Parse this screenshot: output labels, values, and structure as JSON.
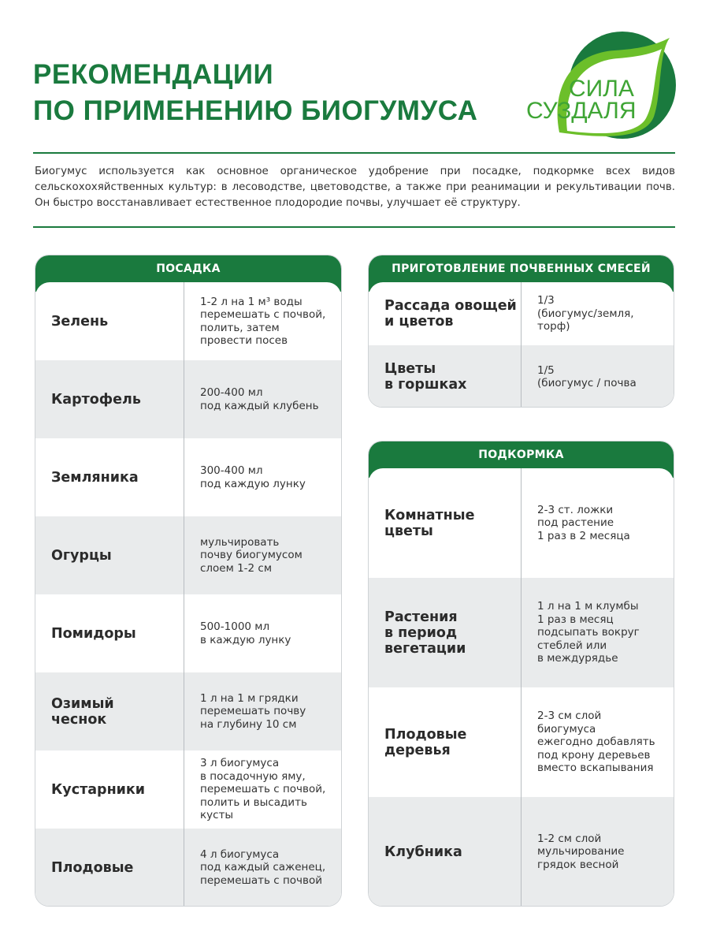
{
  "title": "РЕКОМЕНДАЦИИ\nПО ПРИМЕНЕНИЮ БИОГУМУСА",
  "logo": {
    "line1": "СИЛА",
    "line2": "СУЗДАЛЯ"
  },
  "intro": "Биогумус используется как основное органическое удобрение при посадке, подкормке всех видов сельскохохяйственных культур: в лесоводстве, цветоводстве, а также при реанимации и рекультивации почв. Он быстро восстанавливает естественное плодородие почвы, улучшает её структуру.",
  "colors": {
    "accent": "#1a7a3e",
    "row_alt": "#e9ebec"
  },
  "planting": {
    "header": "ПОСАДКА",
    "rows": [
      {
        "name": "Зелень",
        "value": "1-2 л на 1 м³ воды\nперемешать с почвой,\nполить, затем\nпровести посев"
      },
      {
        "name": "Картофель",
        "value": "200-400 мл\nпод каждый клубень"
      },
      {
        "name": "Земляника",
        "value": "300-400 мл\nпод каждую лунку"
      },
      {
        "name": "Огурцы",
        "value": "мульчировать\nпочву биогумусом\nслоем 1-2 см"
      },
      {
        "name": "Помидоры",
        "value": "500-1000 мл\nв каждую лунку"
      },
      {
        "name": "Озимый\nчеснок",
        "value": "1 л на 1 м грядки\nперемешать почву\nна глубину 10 см"
      },
      {
        "name": "Кустарники",
        "value": "3 л биогумуса\nв посадочную яму,\nперемешать с почвой,\nполить и высадить\nкусты"
      },
      {
        "name": "Плодовые",
        "value": "4 л биогумуса\nпод каждый саженец,\nперемешать с почвой"
      }
    ]
  },
  "mixes": {
    "header": "ПРИГОТОВЛЕНИЕ ПОЧВЕННЫХ СМЕСЕЙ",
    "rows": [
      {
        "name": "Рассада овощей\nи цветов",
        "value": "1/3\n(биогумус/земля,\nторф)"
      },
      {
        "name": "Цветы\nв горшках",
        "value": "1/5\n(биогумус / почва"
      }
    ]
  },
  "feeding": {
    "header": "ПОДКОРМКА",
    "rows": [
      {
        "name": "Комнатные\nцветы",
        "value": "2-3 ст. ложки\nпод растение\n1 раз в 2 месяца"
      },
      {
        "name": "Растения\nв период\nвегетации",
        "value": "1 л на 1 м клумбы\n1 раз в месяц\nподсыпать вокруг\nстеблей или\nв междурядье"
      },
      {
        "name": "Плодовые\nдеревья",
        "value": "2-3 см слой\nбиогумуса\nежегодно добавлять\nпод крону деревьев\nвместо вскапывания"
      },
      {
        "name": "Клубника",
        "value": "1-2 см слой\nмульчирование\nгрядок весной"
      }
    ]
  }
}
